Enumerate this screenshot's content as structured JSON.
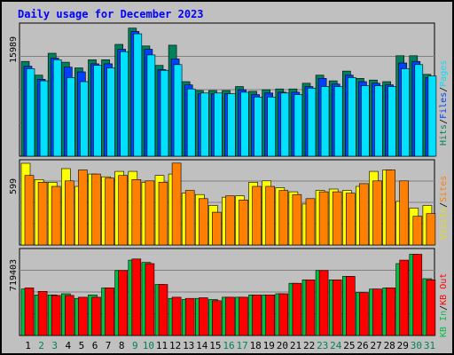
{
  "header": {
    "title": "Daily usage for December 2023"
  },
  "colors": {
    "background": "#c0c0c0",
    "frame": "#c0c0c0",
    "title": "#0000ff",
    "hits": "#00805c",
    "files": "#0040ff",
    "pages": "#00e0ff",
    "visits": "#ffff00",
    "sites": "#ff8000",
    "kb_in": "#00c040",
    "kb_out": "#ff0000",
    "weekend": "#00805c",
    "weekday": "#000000",
    "grid": "#808080"
  },
  "panels": {
    "top": {
      "max_label": "15989",
      "legend": [
        {
          "text": "Hits",
          "color": "#00805c"
        },
        {
          "text": "/",
          "color": "#000000"
        },
        {
          "text": "Files",
          "color": "#0040ff"
        },
        {
          "text": "/",
          "color": "#000000"
        },
        {
          "text": "Pages",
          "color": "#00e0ff"
        }
      ]
    },
    "middle": {
      "max_label": "599",
      "legend": [
        {
          "text": "Visits",
          "color": "#e0e000"
        },
        {
          "text": "/",
          "color": "#000000"
        },
        {
          "text": "Sites",
          "color": "#ff8000"
        }
      ]
    },
    "bottom": {
      "max_label": "719403",
      "legend": [
        {
          "text": "KB In",
          "color": "#00c040"
        },
        {
          "text": "/",
          "color": "#000000"
        },
        {
          "text": "KB Out",
          "color": "#ff0000"
        }
      ]
    }
  },
  "chart_data": [
    {
      "type": "bar",
      "title": "Daily usage for December 2023",
      "ylabel": "Hits / Files / Pages",
      "categories": [
        "1",
        "2",
        "3",
        "4",
        "5",
        "6",
        "7",
        "8",
        "9",
        "10",
        "11",
        "12",
        "13",
        "14",
        "15",
        "16",
        "17",
        "18",
        "19",
        "20",
        "21",
        "22",
        "23",
        "24",
        "25",
        "26",
        "27",
        "28",
        "29",
        "30",
        "31"
      ],
      "ylim": [
        0,
        15989
      ],
      "series": [
        {
          "name": "Hits",
          "values": [
            11700,
            10000,
            12700,
            11600,
            10900,
            11900,
            11900,
            13800,
            15800,
            13600,
            11200,
            13700,
            9200,
            8100,
            8100,
            8100,
            8600,
            8000,
            8200,
            8300,
            8300,
            9000,
            10000,
            9300,
            10500,
            9600,
            9400,
            9200,
            12400,
            12400,
            10100
          ]
        },
        {
          "name": "Files",
          "values": [
            11100,
            9500,
            12100,
            11000,
            10400,
            11400,
            11400,
            13200,
            15400,
            13200,
            10700,
            12000,
            8800,
            7700,
            7700,
            7700,
            8200,
            7600,
            7800,
            7900,
            7900,
            8600,
            9600,
            8900,
            10000,
            9200,
            9000,
            8800,
            11500,
            11700,
            9700
          ]
        },
        {
          "name": "Pages",
          "values": [
            10800,
            9300,
            11900,
            9700,
            9200,
            11200,
            10900,
            12900,
            15100,
            12500,
            10600,
            11300,
            8300,
            7800,
            7800,
            7700,
            7900,
            7300,
            7300,
            7800,
            7600,
            8400,
            8600,
            8600,
            9700,
            8700,
            8700,
            8600,
            10800,
            11300,
            9900
          ]
        }
      ]
    },
    {
      "type": "bar",
      "ylabel": "Visits / Sites",
      "categories": [
        "1",
        "2",
        "3",
        "4",
        "5",
        "6",
        "7",
        "8",
        "9",
        "10",
        "11",
        "12",
        "13",
        "14",
        "15",
        "16",
        "17",
        "18",
        "19",
        "20",
        "21",
        "22",
        "23",
        "24",
        "25",
        "26",
        "27",
        "28",
        "29",
        "30",
        "31"
      ],
      "ylim": [
        0,
        599
      ],
      "series": [
        {
          "name": "Visits",
          "values": [
            599,
            480,
            460,
            560,
            430,
            520,
            500,
            540,
            540,
            460,
            510,
            520,
            380,
            370,
            290,
            350,
            360,
            460,
            470,
            420,
            390,
            300,
            400,
            410,
            400,
            430,
            540,
            550,
            320,
            270,
            290
          ]
        },
        {
          "name": "Sites",
          "values": [
            510,
            460,
            430,
            470,
            550,
            520,
            490,
            510,
            480,
            470,
            460,
            600,
            400,
            340,
            240,
            360,
            330,
            430,
            430,
            400,
            370,
            340,
            390,
            390,
            380,
            450,
            470,
            550,
            470,
            210,
            230
          ]
        }
      ]
    },
    {
      "type": "bar",
      "ylabel": "KB In / KB Out",
      "categories": [
        "1",
        "2",
        "3",
        "4",
        "5",
        "6",
        "7",
        "8",
        "9",
        "10",
        "11",
        "12",
        "13",
        "14",
        "15",
        "16",
        "17",
        "18",
        "19",
        "20",
        "21",
        "22",
        "23",
        "24",
        "25",
        "26",
        "27",
        "28",
        "29",
        "30",
        "31"
      ],
      "ylim": [
        0,
        719403
      ],
      "series": [
        {
          "name": "KB In",
          "values": [
            400000,
            350000,
            350000,
            360000,
            320000,
            350000,
            410000,
            560000,
            650000,
            630000,
            440000,
            320000,
            310000,
            320000,
            310000,
            330000,
            330000,
            350000,
            350000,
            360000,
            450000,
            480000,
            560000,
            480000,
            510000,
            370000,
            400000,
            410000,
            620000,
            700000,
            490000
          ]
        },
        {
          "name": "KB Out",
          "values": [
            410000,
            380000,
            345000,
            345000,
            330000,
            330000,
            410000,
            560000,
            660000,
            620000,
            440000,
            330000,
            320000,
            325000,
            300000,
            330000,
            330000,
            350000,
            350000,
            360000,
            450000,
            480000,
            560000,
            480000,
            510000,
            370000,
            400000,
            410000,
            650000,
            700000,
            480000
          ]
        }
      ]
    }
  ]
}
